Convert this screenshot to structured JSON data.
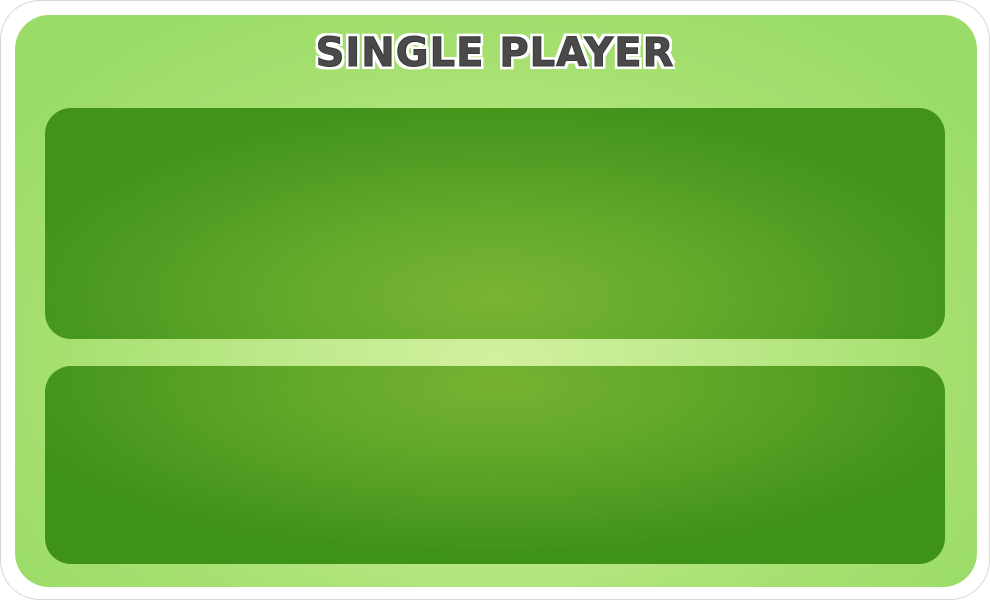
{
  "panel": {
    "title": "SINGLE PLAYER"
  },
  "options": [
    {
      "label": ""
    },
    {
      "label": ""
    }
  ],
  "colors": {
    "frame": "#ffffff",
    "panel": "#a6e070",
    "card": "#4f9c22",
    "title_text": "#4a4a4a"
  }
}
